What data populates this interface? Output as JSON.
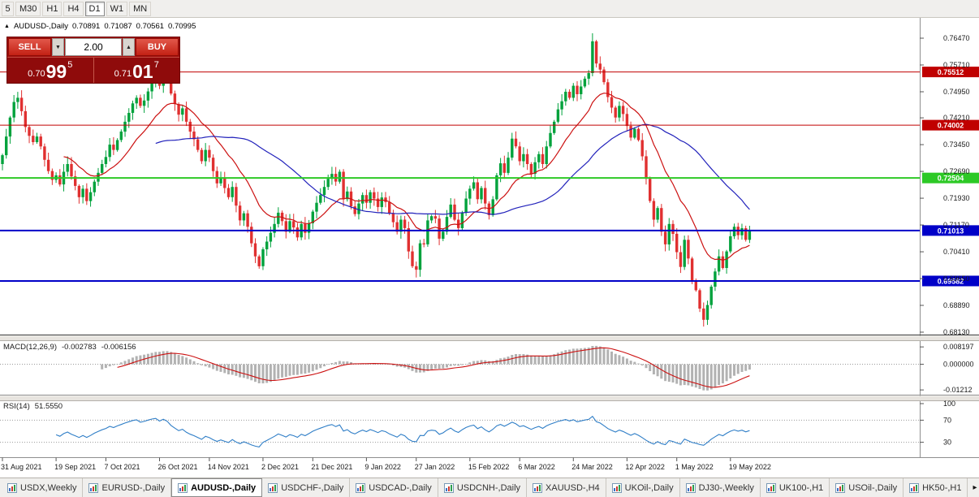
{
  "toolbar": {
    "timeframes": [
      {
        "label": "5",
        "active": false
      },
      {
        "label": "M30",
        "active": false
      },
      {
        "label": "H1",
        "active": false
      },
      {
        "label": "H4",
        "active": false
      },
      {
        "label": "D1",
        "active": true
      },
      {
        "label": "W1",
        "active": false
      },
      {
        "label": "MN",
        "active": false
      }
    ]
  },
  "chart_header": {
    "marker": "▲",
    "symbol": "AUDUSD-,Daily",
    "open": "0.70891",
    "high": "0.71087",
    "low": "0.70561",
    "close": "0.70995"
  },
  "trade_panel": {
    "sell_label": "SELL",
    "buy_label": "BUY",
    "lot_value": "2.00",
    "lot_down_glyph": "▼",
    "lot_up_glyph": "▲",
    "sell_price_prefix": "0.70",
    "sell_price_big": "99",
    "sell_price_sup": "5",
    "buy_price_prefix": "0.71",
    "buy_price_big": "01",
    "buy_price_sup": "7"
  },
  "macd": {
    "title": "MACD(12,26,9)",
    "value_main": "-0.002783",
    "value_signal": "-0.006156",
    "axis": [
      {
        "label": "0.008197",
        "value": 0.008197
      },
      {
        "label": "0.000000",
        "value": 0
      },
      {
        "label": "-0.01212",
        "value": -0.01212
      }
    ]
  },
  "rsi": {
    "title": "RSI(14)",
    "value": "51.5550",
    "axis": [
      {
        "label": "100",
        "value": 100
      },
      {
        "label": "70",
        "value": 70
      },
      {
        "label": "30",
        "value": 30
      }
    ],
    "dotted_levels": [
      70,
      30
    ]
  },
  "tabbar": {
    "more_arrow": "▸",
    "tabs": [
      {
        "label": "USDX,Weekly",
        "active": false
      },
      {
        "label": "EURUSD-,Daily",
        "active": false
      },
      {
        "label": "AUDUSD-,Daily",
        "active": true
      },
      {
        "label": "USDCHF-,Daily",
        "active": false
      },
      {
        "label": "USDCAD-,Daily",
        "active": false
      },
      {
        "label": "USDCNH-,Daily",
        "active": false
      },
      {
        "label": "XAUUSD-,H4",
        "active": false
      },
      {
        "label": "UKOil-,Daily",
        "active": false
      },
      {
        "label": "DJ30-,Weekly",
        "active": false
      },
      {
        "label": "UK100-,H1",
        "active": false
      },
      {
        "label": "USOil-,Daily",
        "active": false
      },
      {
        "label": "HK50-,H1",
        "active": false
      }
    ]
  },
  "chart_data": {
    "type": "candlestick",
    "title": "AUDUSD-,Daily",
    "first_open": 0.729,
    "closes": [
      0.7315,
      0.7368,
      0.7422,
      0.7466,
      0.7478,
      0.744,
      0.7395,
      0.737,
      0.7352,
      0.7368,
      0.734,
      0.7302,
      0.727,
      0.7245,
      0.7258,
      0.7232,
      0.7268,
      0.729,
      0.7255,
      0.7228,
      0.7196,
      0.722,
      0.7185,
      0.721,
      0.724,
      0.7265,
      0.729,
      0.731,
      0.7345,
      0.733,
      0.7358,
      0.7382,
      0.741,
      0.7435,
      0.7462,
      0.7478,
      0.7455,
      0.747,
      0.7496,
      0.752,
      0.7535,
      0.7512,
      0.7548,
      0.753,
      0.749,
      0.746,
      0.743,
      0.7448,
      0.741,
      0.7382,
      0.736,
      0.733,
      0.7298,
      0.733,
      0.7308,
      0.727,
      0.7235,
      0.725,
      0.7222,
      0.7196,
      0.7225,
      0.7172,
      0.713,
      0.715,
      0.7112,
      0.7065,
      0.7028,
      0.7,
      0.7048,
      0.707,
      0.7095,
      0.712,
      0.7152,
      0.7128,
      0.7098,
      0.7128,
      0.711,
      0.7082,
      0.712,
      0.7095,
      0.7122,
      0.7155,
      0.718,
      0.7202,
      0.7225,
      0.7248,
      0.7262,
      0.724,
      0.7268,
      0.719,
      0.7212,
      0.717,
      0.7148,
      0.7178,
      0.7202,
      0.718,
      0.721,
      0.7192,
      0.7168,
      0.7195,
      0.7182,
      0.715,
      0.7125,
      0.7098,
      0.7132,
      0.7108,
      0.7042,
      0.7,
      0.699,
      0.7065,
      0.7062,
      0.713,
      0.7142,
      0.7135,
      0.7078,
      0.7098,
      0.714,
      0.7175,
      0.7132,
      0.7108,
      0.7152,
      0.7192,
      0.722,
      0.7238,
      0.719,
      0.7222,
      0.7178,
      0.7145,
      0.719,
      0.7258,
      0.7292,
      0.7265,
      0.7308,
      0.7362,
      0.734,
      0.7298,
      0.7318,
      0.729,
      0.7262,
      0.7295,
      0.7318,
      0.729,
      0.734,
      0.7378,
      0.741,
      0.7445,
      0.7468,
      0.7495,
      0.7478,
      0.7512,
      0.7488,
      0.751,
      0.7532,
      0.7548,
      0.7638,
      0.7575,
      0.7558,
      0.7522,
      0.748,
      0.745,
      0.7422,
      0.7455,
      0.7432,
      0.7398,
      0.7365,
      0.739,
      0.7358,
      0.7312,
      0.7248,
      0.7185,
      0.7132,
      0.7165,
      0.7098,
      0.7062,
      0.712,
      0.7092,
      0.704,
      0.6998,
      0.7075,
      0.7022,
      0.696,
      0.6932,
      0.688,
      0.6848,
      0.689,
      0.6942,
      0.6985,
      0.7028,
      0.6995,
      0.7042,
      0.7085,
      0.7112,
      0.7088,
      0.7108,
      0.7075,
      0.70995
    ],
    "wick_spikes": [
      {
        "i": 42,
        "high": 0.7555
      },
      {
        "i": 67,
        "low": 0.6993
      },
      {
        "i": 108,
        "low": 0.6968
      },
      {
        "i": 154,
        "high": 0.7661
      },
      {
        "i": 183,
        "low": 0.6829
      }
    ],
    "ma_fast": {
      "type": "ema",
      "period": 16,
      "color": "#cc1111"
    },
    "ma_slow": {
      "type": "sma",
      "period": 40,
      "color": "#2222bb"
    },
    "levels": [
      {
        "price": 0.75512,
        "label": "0.75512",
        "color": "#c00000",
        "width": 1
      },
      {
        "price": 0.74002,
        "label": "0.74002",
        "color": "#c00000",
        "width": 1
      },
      {
        "price": 0.72504,
        "label": "0.72504",
        "color": "#2dc926",
        "width": 2
      },
      {
        "price": 0.71013,
        "label": "0.71013",
        "color": "#0000c8",
        "width": 2
      },
      {
        "price": 0.69582,
        "label": "0.69582",
        "color": "#0000c8",
        "width": 2
      }
    ],
    "y_ticks": [
      "0.76470",
      "0.75710",
      "0.74950",
      "0.74210",
      "0.73450",
      "0.72690",
      "0.71930",
      "0.71170",
      "0.70410",
      "0.69650",
      "0.68890",
      "0.68130"
    ],
    "x_labels": [
      {
        "text": "31 Aug 2021",
        "index": 0
      },
      {
        "text": "19 Sep 2021",
        "index": 14
      },
      {
        "text": "7 Oct 2021",
        "index": 27
      },
      {
        "text": "26 Oct 2021",
        "index": 41
      },
      {
        "text": "14 Nov 2021",
        "index": 54
      },
      {
        "text": "2 Dec 2021",
        "index": 68
      },
      {
        "text": "21 Dec 2021",
        "index": 81
      },
      {
        "text": "9 Jan 2022",
        "index": 95
      },
      {
        "text": "27 Jan 2022",
        "index": 108
      },
      {
        "text": "15 Feb 2022",
        "index": 122
      },
      {
        "text": "6 Mar 2022",
        "index": 135
      },
      {
        "text": "24 Mar 2022",
        "index": 149
      },
      {
        "text": "12 Apr 2022",
        "index": 163
      },
      {
        "text": "1 May 2022",
        "index": 176
      },
      {
        "text": "19 May 2022",
        "index": 190
      }
    ],
    "colors": {
      "up": "#00a23c",
      "down": "#e03030",
      "macd_hist": "#b2b2b2",
      "macd_signal": "#cc1111",
      "rsi_line": "#2f7ec7"
    }
  }
}
